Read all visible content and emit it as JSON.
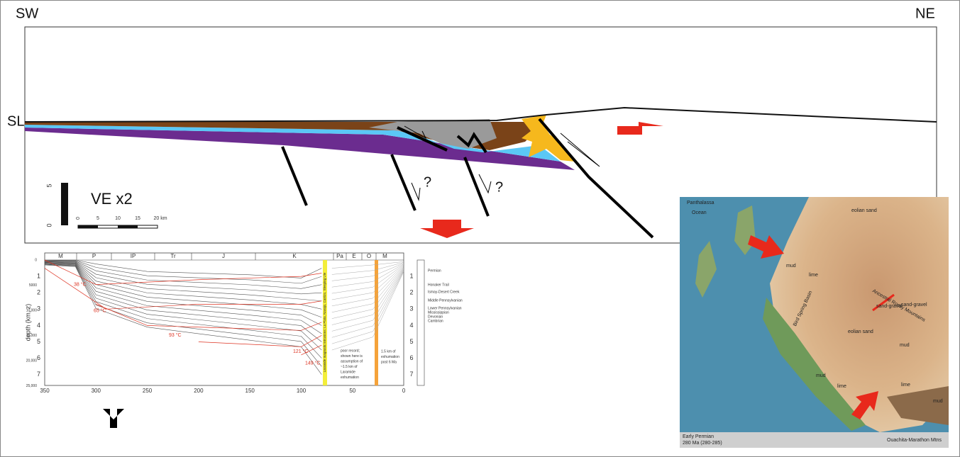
{
  "cross_section": {
    "left_label": "SW",
    "right_label": "NE",
    "sea_level": "SL",
    "scale_label": "VE x2",
    "scale_vertical": [
      "5",
      "0"
    ],
    "scale_horizontal": [
      "0",
      "5",
      "10",
      "15",
      "20 km"
    ],
    "question_marks": [
      "?",
      "?"
    ]
  },
  "burial_history": {
    "periods": [
      "M",
      "P",
      "IP",
      "Tr",
      "J",
      "K",
      "Pa",
      "E",
      "O",
      "M"
    ],
    "y_axis_label": "depth (km, z)",
    "x_ticks": [
      "350",
      "300",
      "250",
      "200",
      "150",
      "100",
      "50",
      "0"
    ],
    "y_ticks": [
      "1",
      "2",
      "3",
      "4",
      "5",
      "6",
      "7"
    ],
    "feet_ticks": [
      "0",
      "5000",
      "10,000",
      "15,000",
      "20,000",
      "25,000"
    ],
    "temperatures": [
      "38 °C",
      "65 °C",
      "93 °C",
      "121 °C",
      "149 °C"
    ],
    "laramide_label": "Laramide magmatic intrusions: La Plata, Navajo, Carrizo, Sleeping Ute",
    "note_left": [
      "poor record;",
      "shown here is",
      "assumption of",
      "~1.5 km of",
      "Laramide",
      "exhumation"
    ],
    "note_right": [
      "1.5 km of",
      "exhumation",
      "post 6 Ma"
    ],
    "strat_units": [
      "Permian",
      "Honaker Trail",
      "Ismay-Desert Creek",
      "Middle Pennsylvanian",
      "Lower Pennsylvanian",
      "Mississippian",
      "Devonian",
      "Cambrian"
    ],
    "right_ticks": [
      "1",
      "2",
      "3",
      "4",
      "5",
      "6",
      "7"
    ]
  },
  "map": {
    "labels": [
      "Panthalassa",
      "Ocean",
      "eolian sand",
      "mud",
      "lime",
      "Ancestral Rocky Mountains",
      "sand-gravel",
      "sand-gravel",
      "eolian sand",
      "mud",
      "mud",
      "lime",
      "lime",
      "mud",
      "Ouachita-Marathon Mtns",
      "Bird Spring Basin"
    ],
    "caption": [
      "Early Permian",
      "280 Ma (280-285)"
    ]
  }
}
